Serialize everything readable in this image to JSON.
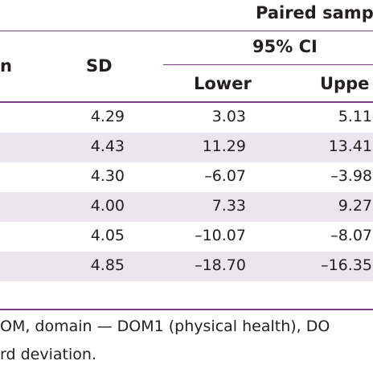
{
  "header": {
    "group_title": "Paired samp",
    "ci_title": "95% CI",
    "col_left_fragment": "n",
    "col_sd": "SD",
    "col_lower": "Lower",
    "col_upper": "Uppe"
  },
  "rows": [
    {
      "sd": "4.29",
      "lower": "3.03",
      "upper": "5.11"
    },
    {
      "sd": "4.43",
      "lower": "11.29",
      "upper": "13.41"
    },
    {
      "sd": "4.30",
      "lower": "–6.07",
      "upper": "–3.98"
    },
    {
      "sd": "4.00",
      "lower": "7.33",
      "upper": "9.27"
    },
    {
      "sd": "4.05",
      "lower": "–10.07",
      "upper": "–8.07"
    },
    {
      "sd": "4.85",
      "lower": "–18.70",
      "upper": "–16.35"
    }
  ],
  "footnote": {
    "line1": "OM, domain — DOM1 (physical health), DO",
    "line2": "rd deviation."
  },
  "colors": {
    "rule": "#7b3f84",
    "band": "#ebe5ef",
    "text": "#231f20"
  }
}
